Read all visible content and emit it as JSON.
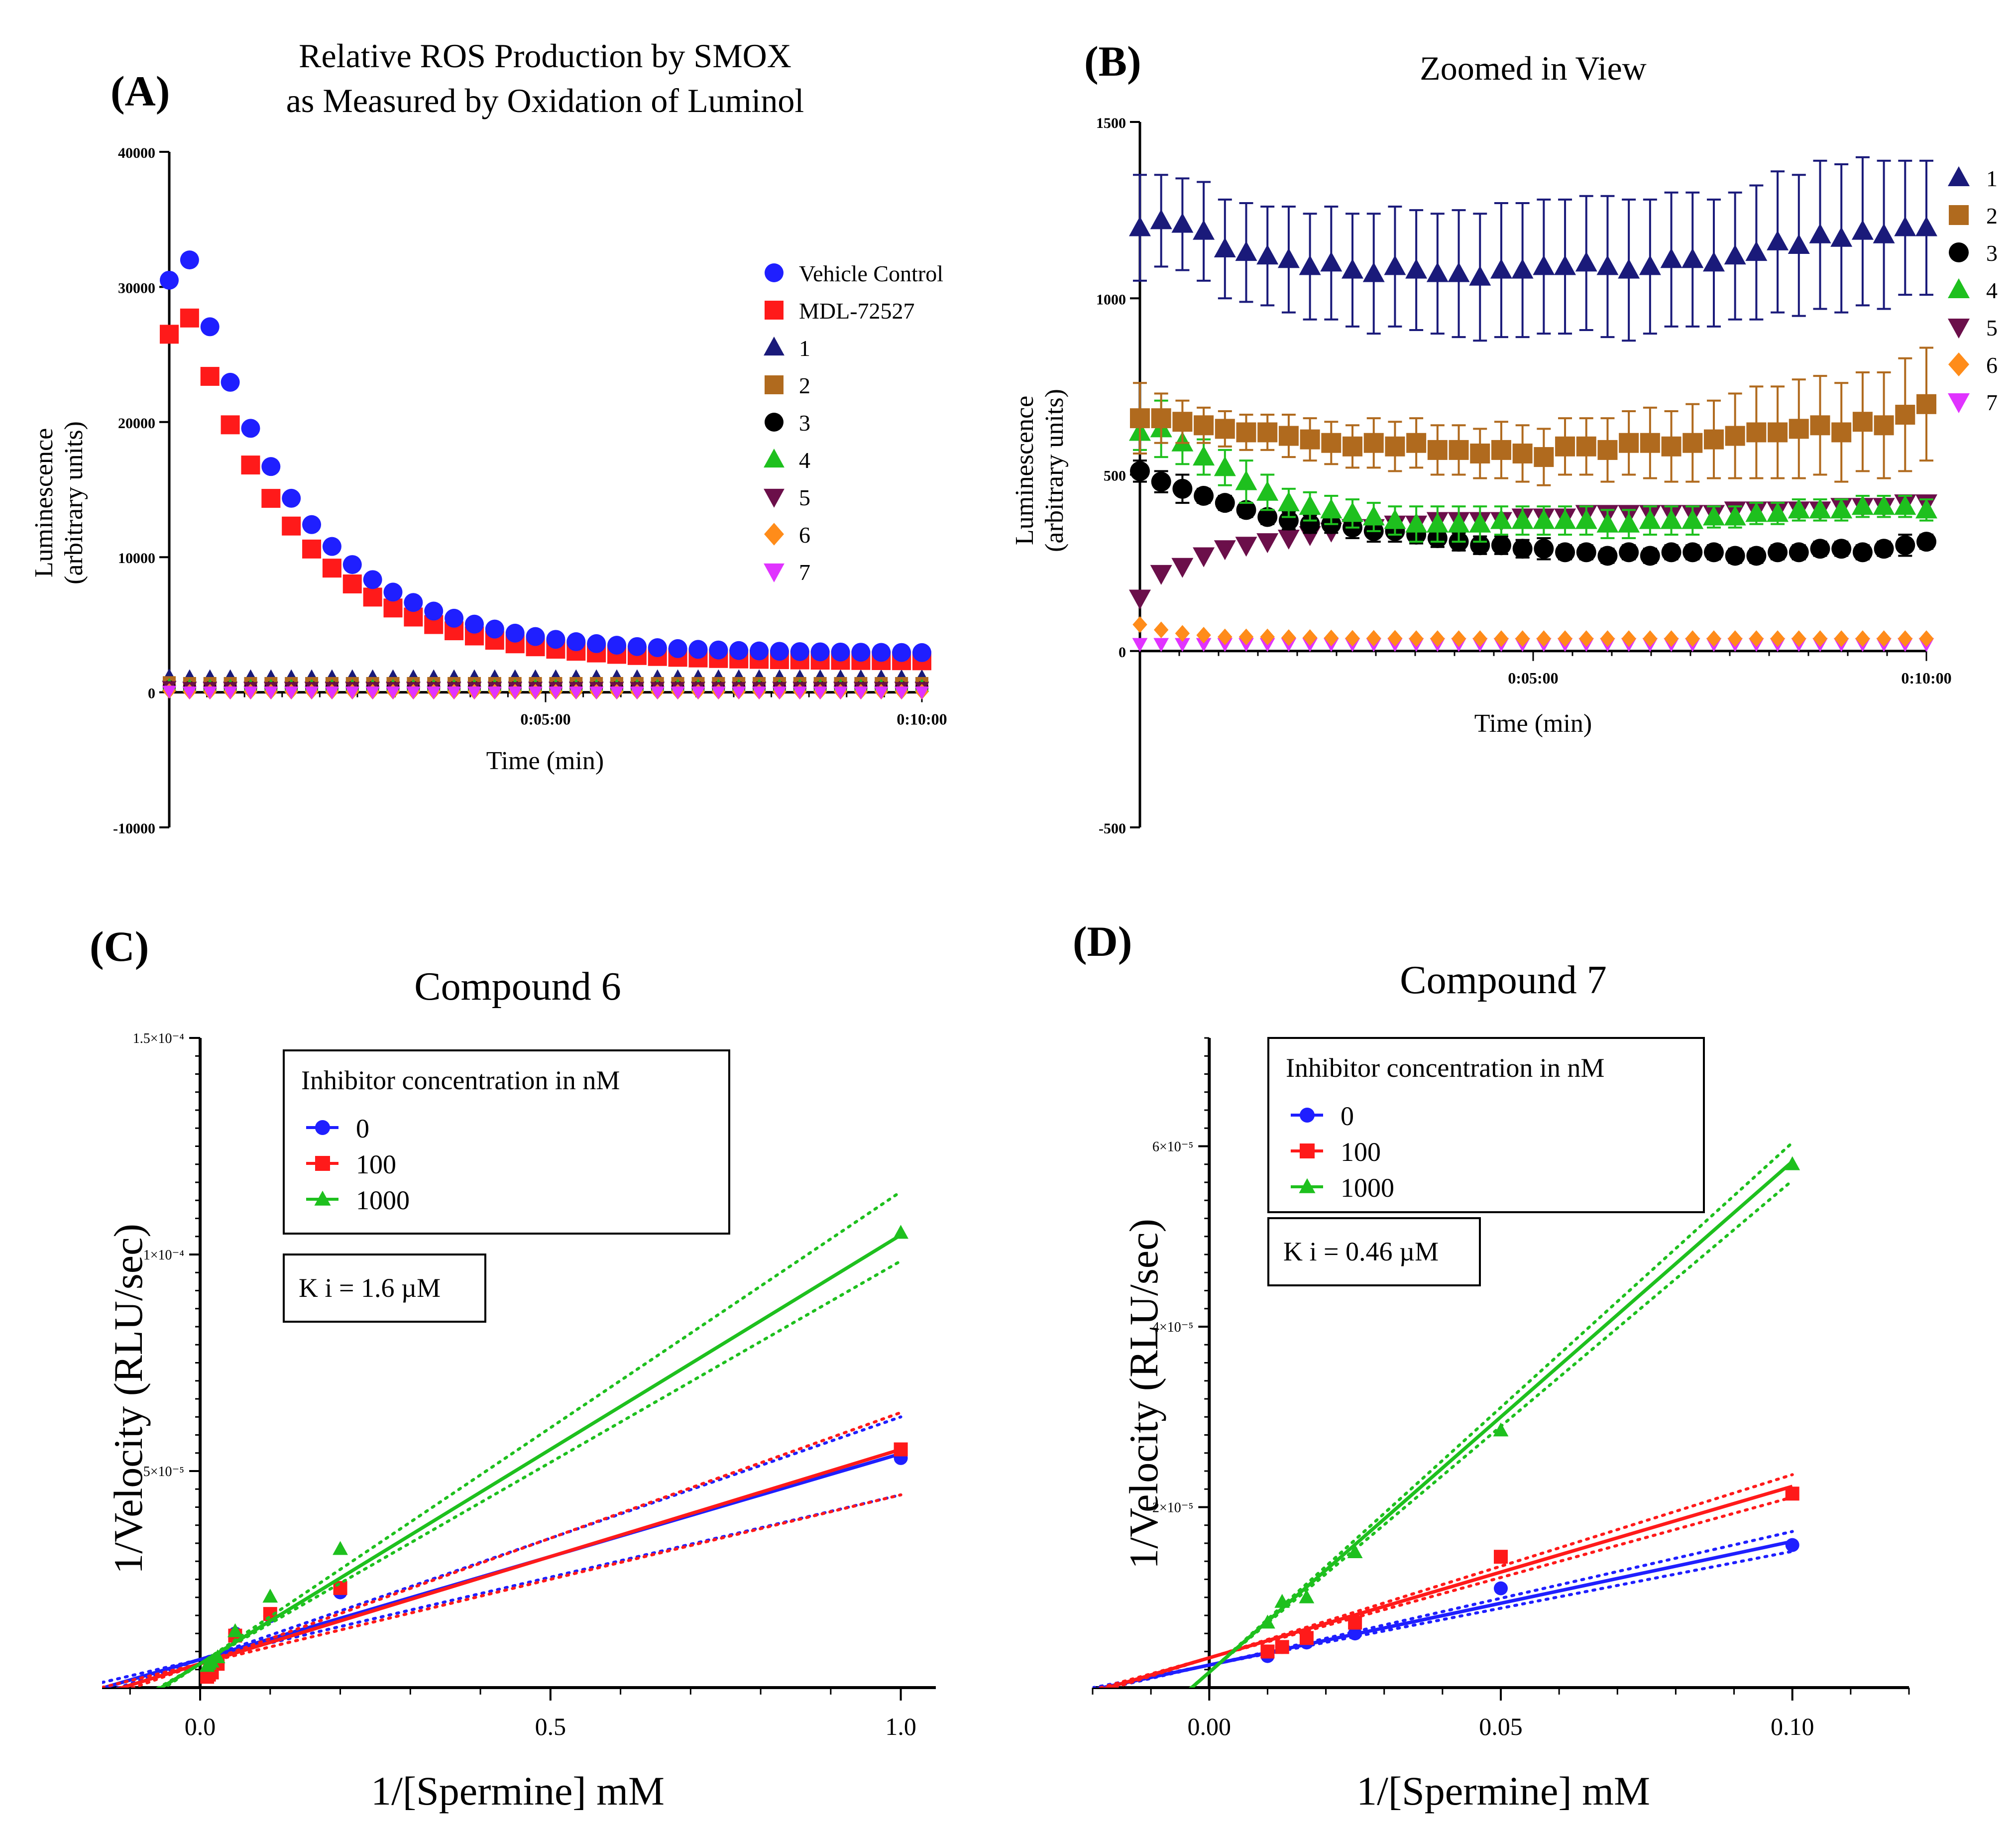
{
  "colors": {
    "blue": "#1f1fff",
    "red": "#ff1a1a",
    "navy": "#1a1a7a",
    "brown": "#b06a1e",
    "black": "#000000",
    "green": "#1ec01e",
    "maroon": "#6b0f4a",
    "orange": "#ff8c1a",
    "magenta": "#e033ff"
  },
  "chart_data": [
    {
      "panel_label": "(A)",
      "type": "scatter",
      "title_line1": "Relative ROS Production by SMOX",
      "title_line2": "as Measured by Oxidation of Luminol",
      "xlabel": "Time (min)",
      "ylabel_line1": "Luminescence",
      "ylabel_line2": "(arbitrary units)",
      "xlim": [
        0,
        10
      ],
      "ylim": [
        -10000,
        40000
      ],
      "y_ticks": [
        "40000",
        "30000",
        "20000",
        "10000",
        "0",
        "-10000"
      ],
      "x_tick_labels": [
        "0:05:00",
        "0:10:00"
      ],
      "legend_position": "right",
      "series": [
        {
          "name": "Vehicle Control",
          "marker": "circle",
          "color": "blue",
          "start": 30500,
          "peak": 32000,
          "end": 2900
        },
        {
          "name": "MDL-72527",
          "marker": "square",
          "color": "red",
          "start": 26500,
          "peak": 27700,
          "end": 2300
        },
        {
          "name": "1",
          "marker": "triangle-up",
          "color": "navy",
          "value": 1150
        },
        {
          "name": "2",
          "marker": "square",
          "color": "brown",
          "value": 650
        },
        {
          "name": "3",
          "marker": "circle",
          "color": "black",
          "value": 350
        },
        {
          "name": "4",
          "marker": "triangle-up",
          "color": "green",
          "value": 450
        },
        {
          "name": "5",
          "marker": "triangle-down",
          "color": "maroon",
          "value": 350
        },
        {
          "name": "6",
          "marker": "diamond",
          "color": "orange",
          "value": 40
        },
        {
          "name": "7",
          "marker": "triangle-down",
          "color": "magenta",
          "value": 20
        }
      ]
    },
    {
      "panel_label": "(B)",
      "type": "scatter",
      "title": "Zoomed in View",
      "xlabel": "Time (min)",
      "ylabel_line1": "Luminescence",
      "ylabel_line2": "(arbitrary units)",
      "xlim": [
        0,
        10
      ],
      "ylim": [
        -500,
        1500
      ],
      "y_ticks": [
        "1500",
        "1000",
        "500",
        "0",
        "-500"
      ],
      "x_tick_labels": [
        "0:05:00",
        "0:10:00"
      ],
      "legend_position": "right",
      "series": [
        {
          "name": "1",
          "marker": "triangle-up",
          "color": "navy",
          "values": [
            1200,
            1220,
            1210,
            1190,
            1140,
            1130,
            1120,
            1110,
            1090,
            1100,
            1080,
            1070,
            1090,
            1080,
            1070,
            1070,
            1060,
            1080,
            1080,
            1090,
            1090,
            1100,
            1090,
            1080,
            1090,
            1110,
            1110,
            1100,
            1120,
            1130,
            1160,
            1150,
            1180,
            1170,
            1190,
            1180,
            1200,
            1200
          ],
          "errors": [
            150,
            130,
            130,
            140,
            140,
            140,
            140,
            150,
            150,
            160,
            160,
            170,
            170,
            170,
            170,
            180,
            180,
            190,
            190,
            190,
            190,
            190,
            200,
            200,
            190,
            190,
            190,
            180,
            180,
            190,
            200,
            200,
            210,
            210,
            210,
            210,
            190,
            190
          ]
        },
        {
          "name": "2",
          "marker": "square",
          "color": "brown",
          "values": [
            660,
            660,
            650,
            640,
            630,
            620,
            620,
            610,
            600,
            590,
            580,
            590,
            580,
            590,
            570,
            570,
            560,
            570,
            560,
            550,
            580,
            580,
            570,
            590,
            590,
            580,
            590,
            600,
            610,
            620,
            620,
            630,
            640,
            620,
            650,
            640,
            670,
            700
          ],
          "errors": [
            100,
            70,
            60,
            50,
            50,
            50,
            50,
            60,
            60,
            60,
            60,
            70,
            70,
            70,
            70,
            70,
            70,
            80,
            80,
            80,
            80,
            80,
            90,
            90,
            100,
            100,
            110,
            110,
            120,
            130,
            130,
            140,
            140,
            140,
            140,
            150,
            160,
            160
          ]
        },
        {
          "name": "3",
          "marker": "circle",
          "color": "black",
          "values": [
            510,
            480,
            460,
            440,
            420,
            400,
            380,
            370,
            360,
            360,
            350,
            340,
            340,
            330,
            320,
            310,
            300,
            300,
            290,
            290,
            280,
            280,
            270,
            280,
            270,
            280,
            280,
            280,
            270,
            270,
            280,
            280,
            290,
            290,
            280,
            290,
            300,
            310
          ],
          "errors": [
            30,
            30,
            40,
            20,
            20,
            20,
            20,
            25,
            25,
            25,
            30,
            30,
            30,
            25,
            25,
            25,
            25,
            25,
            25,
            30,
            20,
            20,
            20,
            20,
            20,
            20,
            20,
            20,
            20,
            20,
            20,
            20,
            20,
            20,
            20,
            20,
            30,
            20
          ]
        },
        {
          "name": "4",
          "marker": "triangle-up",
          "color": "green",
          "values": [
            620,
            630,
            590,
            550,
            520,
            480,
            450,
            420,
            410,
            400,
            390,
            380,
            370,
            360,
            360,
            360,
            360,
            370,
            370,
            370,
            370,
            370,
            360,
            360,
            370,
            370,
            370,
            380,
            380,
            390,
            390,
            400,
            400,
            400,
            410,
            410,
            410,
            400
          ],
          "errors": [
            50,
            80,
            60,
            50,
            50,
            60,
            50,
            40,
            40,
            40,
            40,
            40,
            40,
            50,
            50,
            50,
            50,
            40,
            40,
            40,
            40,
            40,
            40,
            40,
            40,
            40,
            40,
            30,
            30,
            30,
            30,
            30,
            30,
            30,
            30,
            30,
            30,
            30
          ]
        },
        {
          "name": "5",
          "marker": "triangle-down",
          "color": "maroon",
          "values": [
            150,
            220,
            240,
            270,
            290,
            300,
            310,
            320,
            330,
            340,
            350,
            350,
            360,
            360,
            370,
            370,
            370,
            370,
            380,
            380,
            380,
            390,
            390,
            390,
            390,
            390,
            390,
            390,
            400,
            400,
            400,
            400,
            400,
            410,
            410,
            410,
            420,
            420
          ],
          "errors": [
            0,
            0,
            0,
            0,
            0,
            0,
            0,
            0,
            0,
            0,
            0,
            0,
            0,
            0,
            0,
            0,
            0,
            0,
            0,
            0,
            0,
            0,
            0,
            0,
            0,
            0,
            0,
            0,
            0,
            0,
            0,
            0,
            0,
            0,
            0,
            0,
            0,
            0
          ]
        },
        {
          "name": "6",
          "marker": "diamond",
          "color": "orange",
          "values": [
            75,
            60,
            50,
            45,
            40,
            40,
            40,
            38,
            38,
            37,
            36,
            36,
            36,
            35,
            35,
            35,
            35,
            35,
            35,
            35,
            35,
            35,
            35,
            35,
            35,
            35,
            35,
            35,
            35,
            35,
            35,
            35,
            35,
            35,
            35,
            35,
            35,
            35
          ],
          "errors": [
            0,
            0,
            0,
            0,
            0,
            0,
            0,
            0,
            0,
            0,
            0,
            0,
            0,
            0,
            0,
            0,
            0,
            0,
            0,
            0,
            0,
            0,
            0,
            0,
            0,
            0,
            0,
            0,
            0,
            0,
            0,
            0,
            0,
            0,
            0,
            0,
            0,
            0
          ]
        },
        {
          "name": "7",
          "marker": "triangle-down",
          "color": "magenta",
          "values": [
            20,
            20,
            20,
            20,
            20,
            20,
            20,
            20,
            20,
            20,
            20,
            20,
            20,
            20,
            20,
            20,
            20,
            20,
            20,
            20,
            20,
            20,
            20,
            20,
            20,
            20,
            20,
            20,
            20,
            20,
            20,
            20,
            20,
            20,
            20,
            20,
            20,
            20
          ],
          "errors": [
            0,
            0,
            0,
            0,
            0,
            0,
            0,
            0,
            0,
            0,
            0,
            0,
            0,
            0,
            0,
            0,
            0,
            0,
            0,
            0,
            0,
            0,
            0,
            0,
            0,
            0,
            0,
            0,
            0,
            0,
            0,
            0,
            0,
            0,
            0,
            0,
            0,
            0
          ]
        }
      ]
    },
    {
      "panel_label": "(C)",
      "type": "scatter",
      "title": "Compound 6",
      "xlabel": "1/[Spermine] mM",
      "ylabel": "1/Velocity (RLU/sec)",
      "xlim": [
        -0.14,
        1.05
      ],
      "ylim": [
        0,
        0.00015
      ],
      "x_ticks": [
        0.0,
        0.5,
        1.0
      ],
      "x_tick_labels": [
        "0.0",
        "0.5",
        "1.0"
      ],
      "y_ticks": [
        5e-05,
        0.0001,
        0.00015
      ],
      "y_tick_labels": [
        "5×10⁻⁵",
        "1×10⁻⁴",
        "1.5×10⁻⁴"
      ],
      "legend_title": "Inhibitor concentration in nM",
      "legend_position": "top-left",
      "annotation": "K i = 1.6 µM",
      "series": [
        {
          "name": "0",
          "marker": "circle",
          "color": "blue",
          "x": [
            0.01,
            0.0125,
            0.0167,
            0.025,
            0.05,
            0.1,
            0.2,
            1.0
          ],
          "y": [
            3.5e-06,
            4e-06,
            4.5e-06,
            5.5e-06,
            1.25e-05,
            1.65e-05,
            2.2e-05,
            5.3e-05
          ],
          "fit": {
            "slope": 4.75e-05,
            "intercept": 6.5e-06
          },
          "ci": {
            "upper_slope": 5.6e-05,
            "lower_slope": 3.8e-05
          }
        },
        {
          "name": "100",
          "marker": "square",
          "color": "red",
          "x": [
            0.01,
            0.0125,
            0.0167,
            0.025,
            0.05,
            0.1,
            0.2,
            1.0
          ],
          "y": [
            2.5e-06,
            3e-06,
            3.5e-06,
            5.5e-06,
            1.2e-05,
            1.7e-05,
            2.3e-05,
            5.5e-05
          ],
          "fit": {
            "slope": 4.95e-05,
            "intercept": 5.5e-06
          },
          "ci": {
            "upper_slope": 5.8e-05,
            "lower_slope": 3.9e-05
          }
        },
        {
          "name": "1000",
          "marker": "triangle-up",
          "color": "green",
          "x": [
            0.01,
            0.0125,
            0.0167,
            0.025,
            0.05,
            0.1,
            0.2,
            1.0
          ],
          "y": [
            5e-06,
            5.5e-06,
            6e-06,
            7e-06,
            1.3e-05,
            2.1e-05,
            3.2e-05,
            0.000105
          ],
          "fit": {
            "slope": 9.9e-05,
            "intercept": 5.5e-06
          },
          "ci": {
            "upper_slope": 0.000109,
            "lower_slope": 9.3e-05
          }
        }
      ]
    },
    {
      "panel_label": "(D)",
      "type": "scatter",
      "title": "Compound 7",
      "xlabel": "1/[Spermine] mM",
      "ylabel": "1/Velocity (RLU/sec)",
      "xlim": [
        -0.02,
        0.12
      ],
      "ylim": [
        0,
        7.2e-05
      ],
      "x_ticks": [
        0.0,
        0.05,
        0.1
      ],
      "x_tick_labels": [
        "0.00",
        "0.05",
        "0.10"
      ],
      "y_ticks": [
        2e-05,
        4e-05,
        6e-05
      ],
      "y_tick_labels": [
        "2×10⁻⁵",
        "4×10⁻⁵",
        "6×10⁻⁵"
      ],
      "legend_title": "Inhibitor concentration in nM",
      "legend_position": "top-left",
      "annotation": "K i = 0.46 µM",
      "series": [
        {
          "name": "0",
          "marker": "circle",
          "color": "blue",
          "x": [
            0.01,
            0.0125,
            0.0167,
            0.025,
            0.05,
            0.1
          ],
          "y": [
            3.5e-06,
            4.5e-06,
            5e-06,
            6e-06,
            1.1e-05,
            1.58e-05
          ],
          "fit": {
            "slope": 0.000137,
            "intercept": 2.5e-06
          },
          "ci": {
            "upper_slope": 0.000148,
            "lower_slope": 0.000126
          }
        },
        {
          "name": "100",
          "marker": "square",
          "color": "red",
          "x": [
            0.01,
            0.0125,
            0.0167,
            0.025,
            0.05,
            0.1
          ],
          "y": [
            4e-06,
            4.5e-06,
            5.5e-06,
            7.2e-06,
            1.45e-05,
            2.15e-05
          ],
          "fit": {
            "slope": 0.00019,
            "intercept": 3.3e-06
          },
          "ci": {
            "upper_slope": 0.000203,
            "lower_slope": 0.000178
          }
        },
        {
          "name": "1000",
          "marker": "triangle-up",
          "color": "green",
          "x": [
            0.01,
            0.0125,
            0.0167,
            0.025,
            0.05,
            0.1
          ],
          "y": [
            7.2e-06,
            9.5e-06,
            1e-05,
            1.5e-05,
            2.85e-05,
            5.8e-05
          ],
          "fit": {
            "slope": 0.000566,
            "intercept": 1.7e-06
          },
          "ci": {
            "upper_slope": 0.000587,
            "lower_slope": 0.000545
          }
        }
      ]
    }
  ]
}
